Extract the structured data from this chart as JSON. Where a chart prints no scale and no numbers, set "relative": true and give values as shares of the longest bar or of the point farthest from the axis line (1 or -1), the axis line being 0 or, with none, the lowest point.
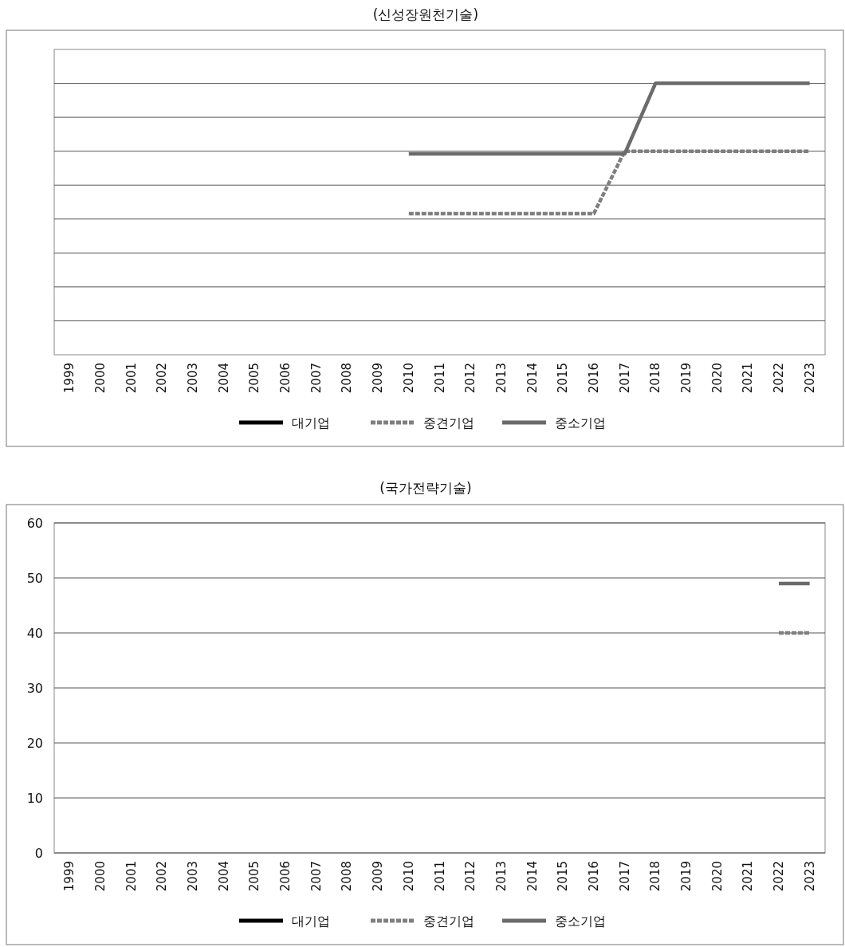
{
  "chart_data": [
    {
      "type": "line",
      "title": "(신성장원천기술)",
      "relative": true,
      "grid": "y",
      "legend": "bottom",
      "categories": [
        "1999",
        "2000",
        "2001",
        "2002",
        "2003",
        "2004",
        "2005",
        "2006",
        "2007",
        "2008",
        "2009",
        "2010",
        "2011",
        "2012",
        "2013",
        "2014",
        "2015",
        "2016",
        "2017",
        "2018",
        "2019",
        "2020",
        "2021",
        "2022",
        "2023"
      ],
      "series": [
        {
          "name": "대기업",
          "color": "#000000",
          "line_style": "solid",
          "values": [
            null,
            null,
            null,
            null,
            null,
            null,
            null,
            null,
            null,
            null,
            null,
            null,
            null,
            null,
            null,
            null,
            null,
            null,
            null,
            null,
            null,
            null,
            null,
            null,
            null
          ]
        },
        {
          "name": "중견기업",
          "color": "#7f7f7f",
          "line_style": "dashed",
          "values": [
            null,
            null,
            null,
            null,
            null,
            null,
            null,
            null,
            null,
            null,
            null,
            0.52,
            0.52,
            0.52,
            0.52,
            0.52,
            0.52,
            0.52,
            0.75,
            0.75,
            0.75,
            0.75,
            0.75,
            0.75,
            0.75
          ]
        },
        {
          "name": "중소기업",
          "color": "#6b6b6b",
          "line_style": "solid",
          "values": [
            null,
            null,
            null,
            null,
            null,
            null,
            null,
            null,
            null,
            null,
            null,
            0.74,
            0.74,
            0.74,
            0.74,
            0.74,
            0.74,
            0.74,
            0.74,
            1,
            1,
            1,
            1,
            1,
            1
          ]
        }
      ]
    },
    {
      "type": "line",
      "title": "(국가전략기술)",
      "grid": "y",
      "legend": "bottom",
      "ylim": [
        0,
        60
      ],
      "yticks": [
        0,
        10,
        20,
        30,
        40,
        50,
        60
      ],
      "categories": [
        "1999",
        "2000",
        "2001",
        "2002",
        "2003",
        "2004",
        "2005",
        "2006",
        "2007",
        "2008",
        "2009",
        "2010",
        "2011",
        "2012",
        "2013",
        "2014",
        "2015",
        "2016",
        "2017",
        "2018",
        "2019",
        "2020",
        "2021",
        "2022",
        "2023"
      ],
      "series": [
        {
          "name": "대기업",
          "color": "#000000",
          "line_style": "solid",
          "values": [
            null,
            null,
            null,
            null,
            null,
            null,
            null,
            null,
            null,
            null,
            null,
            null,
            null,
            null,
            null,
            null,
            null,
            null,
            null,
            null,
            null,
            null,
            null,
            null,
            null
          ]
        },
        {
          "name": "중견기업",
          "color": "#7f7f7f",
          "line_style": "dashed",
          "values": [
            null,
            null,
            null,
            null,
            null,
            null,
            null,
            null,
            null,
            null,
            null,
            null,
            null,
            null,
            null,
            null,
            null,
            null,
            null,
            null,
            null,
            null,
            null,
            40,
            40
          ]
        },
        {
          "name": "중소기업",
          "color": "#6b6b6b",
          "line_style": "solid",
          "values": [
            null,
            null,
            null,
            null,
            null,
            null,
            null,
            null,
            null,
            null,
            null,
            null,
            null,
            null,
            null,
            null,
            null,
            null,
            null,
            null,
            null,
            null,
            null,
            49,
            49
          ]
        }
      ]
    }
  ]
}
